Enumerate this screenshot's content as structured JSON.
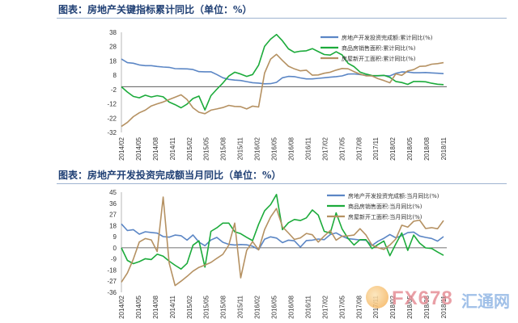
{
  "colors": {
    "title": "#1f3f74",
    "series_blue": "#5b86c5",
    "series_green": "#1cab3b",
    "series_brown": "#b59162",
    "grid_zero": "#444444"
  },
  "watermark": {
    "icon": "fx678-logo-icon",
    "text": "FX678",
    "cn": "汇通网"
  },
  "chart_data": [
    {
      "type": "line",
      "title": "图表：房地产关键指标累计同比（单位：%）",
      "ylim": [
        -32,
        38
      ],
      "yticks": [
        38,
        28,
        18,
        8,
        -2,
        -12,
        -22,
        -32
      ],
      "xticks": [
        "2014/02",
        "2014/05",
        "2014/08",
        "2014/11",
        "2015/02",
        "2015/05",
        "2015/08",
        "2015/11",
        "2016/02",
        "2016/05",
        "2016/08",
        "2016/11",
        "2017/02",
        "2017/05",
        "2017/08",
        "2017/11",
        "2018/02",
        "2018/05",
        "2018/08",
        "2018/11"
      ],
      "legend_position": "top-right",
      "series": [
        {
          "name": "房地产开发投资完成额:累计同比(%)",
          "color_key": "series_blue",
          "values": [
            19.3,
            16.8,
            16.4,
            15.2,
            14.7,
            14.7,
            14.1,
            13.7,
            13.5,
            12.6,
            12.5,
            12.4,
            12.0,
            10.5,
            10.4,
            10.4,
            8.5,
            6.2,
            5.1,
            4.6,
            4.3,
            3.5,
            2.8,
            2.5,
            2.0,
            2.1,
            3.0,
            6.2,
            7.2,
            7.0,
            6.1,
            5.4,
            5.4,
            5.8,
            6.2,
            6.6,
            7.0,
            7.5,
            8.8,
            8.9,
            8.5,
            7.9,
            7.5,
            7.6,
            7.8,
            7.5,
            9.3,
            10.3,
            10.2,
            9.7,
            9.7,
            9.9,
            9.6,
            9.4,
            9.1
          ]
        },
        {
          "name": "商品房销售面积:累计同比(%)",
          "color_key": "series_green",
          "values": [
            -0.1,
            -3.8,
            -6.8,
            -7.8,
            -6.0,
            -7.2,
            -6.3,
            -7.1,
            -10.8,
            -12.6,
            -14.8,
            -12.2,
            -8.3,
            -6.6,
            -16.3,
            -6.3,
            -1.8,
            2.5,
            7.4,
            10.1,
            8.8,
            7.2,
            8.5,
            15.0,
            28.2,
            33.2,
            36.5,
            32.0,
            26.4,
            24.0,
            24.8,
            25.1,
            26.6,
            24.5,
            22.5,
            22.1,
            24.4,
            22.2,
            16.3,
            14.0,
            10.2,
            8.8,
            7.8,
            7.7,
            7.9,
            6.5,
            3.6,
            2.9,
            1.6,
            3.6,
            3.6,
            3.4,
            2.4,
            1.7,
            1.4
          ]
        },
        {
          "name": "房屋新开工面积:累计同比(%)",
          "color_key": "series_brown",
          "values": [
            -27.8,
            -25.0,
            -21.0,
            -18.3,
            -16.4,
            -13.5,
            -12.0,
            -10.7,
            -9.0,
            -7.4,
            -5.7,
            -9.0,
            -14.8,
            -17.9,
            -18.9,
            -16.4,
            -15.6,
            -14.6,
            -13.1,
            -13.8,
            -14.0,
            -15.6,
            -13.6,
            -14.2,
            9.5,
            19.2,
            22.6,
            18.3,
            14.3,
            12.4,
            11.1,
            11.5,
            8.0,
            8.2,
            9.4,
            10.1,
            11.6,
            12.7,
            12.5,
            10.5,
            8.8,
            7.6,
            7.5,
            5.6,
            4.3,
            2.7,
            8.9,
            7.9,
            11.0,
            11.9,
            14.2,
            14.4,
            15.7,
            16.1,
            16.8
          ]
        }
      ]
    },
    {
      "type": "line",
      "title": "图表：房地产开发投资完成额当月同比（单位：%）",
      "ylim": [
        -36,
        45
      ],
      "yticks": [
        45,
        36,
        27,
        18,
        9,
        0,
        -9,
        -18,
        -27,
        -36
      ],
      "xticks": [
        "2014/02",
        "2014/05",
        "2014/08",
        "2014/11",
        "2015/02",
        "2015/05",
        "2015/08",
        "2015/11",
        "2016/02",
        "2016/05",
        "2016/08",
        "2016/11",
        "2017/02",
        "2017/05",
        "2017/08",
        "2017/11",
        "2018/02",
        "2018/05",
        "2018/08",
        "2018/11"
      ],
      "legend_position": "top-right",
      "series": [
        {
          "name": "房地产开发投资完成额:当月同比(%)",
          "color_key": "series_blue",
          "values": [
            19.3,
            14.0,
            14.7,
            11.0,
            13.0,
            12.4,
            11.9,
            9.1,
            8.6,
            10.3,
            9.8,
            6.2,
            10.4,
            4.6,
            1.7,
            6.3,
            8.4,
            4.5,
            2.8,
            2.3,
            2.7,
            2.4,
            1.3,
            -1.5,
            6.9,
            8.9,
            7.9,
            4.2,
            6.2,
            5.7,
            0.6,
            5.9,
            6.2,
            7.1,
            6.6,
            10.7,
            12.1,
            9.4,
            7.4,
            6.9,
            6.3,
            6.1,
            1.9,
            5.3,
            7.7,
            10.8,
            8.1,
            9.8,
            12.3,
            12.7,
            9.5,
            8.4,
            7.6,
            5.4,
            9.1
          ]
        },
        {
          "name": "商品房销售面积:当月同比(%)",
          "color_key": "series_green",
          "values": [
            -0.1,
            -10.2,
            -12.8,
            -11.2,
            -8.8,
            -9.5,
            -5.2,
            -6.8,
            -10.8,
            -14.1,
            -17.2,
            -12.6,
            2.1,
            5.7,
            -15.6,
            13.3,
            16.2,
            20.0,
            20.0,
            13.0,
            11.4,
            8.5,
            5.8,
            19.0,
            29.9,
            34.9,
            43.2,
            14.7,
            20.3,
            22.9,
            22.1,
            24.2,
            30.6,
            26.5,
            13.3,
            11.9,
            28.3,
            15.2,
            7.6,
            2.3,
            6.6,
            6.6,
            -0.6,
            2.6,
            5.5,
            -6.4,
            3.1,
            12.0,
            -2.1,
            10.3,
            3.8,
            -0.1,
            -0.5,
            -3.4,
            -6.1
          ]
        },
        {
          "name": "房屋新开工面积:当月同比(%)",
          "color_key": "series_brown",
          "values": [
            -27.8,
            -20.4,
            -9.2,
            4.7,
            7.5,
            6.4,
            -3.0,
            41.0,
            -12.3,
            -30.5,
            -27.0,
            -23.1,
            -18.9,
            -15.8,
            -13.9,
            -11.8,
            -8.5,
            -5.3,
            2.2,
            20.0,
            -24.3,
            -2.1,
            5.0,
            -1.7,
            14.7,
            24.9,
            31.8,
            17.0,
            12.0,
            6.8,
            8.0,
            11.6,
            10.6,
            4.6,
            9.5,
            14.0,
            6.2,
            9.4,
            9.7,
            10.3,
            15.5,
            10.3,
            2.2,
            0.1,
            -1.3,
            2.3,
            7.1,
            18.3,
            16.7,
            21.5,
            22.4,
            15.6,
            16.3,
            15.4,
            22.1
          ]
        }
      ]
    }
  ]
}
